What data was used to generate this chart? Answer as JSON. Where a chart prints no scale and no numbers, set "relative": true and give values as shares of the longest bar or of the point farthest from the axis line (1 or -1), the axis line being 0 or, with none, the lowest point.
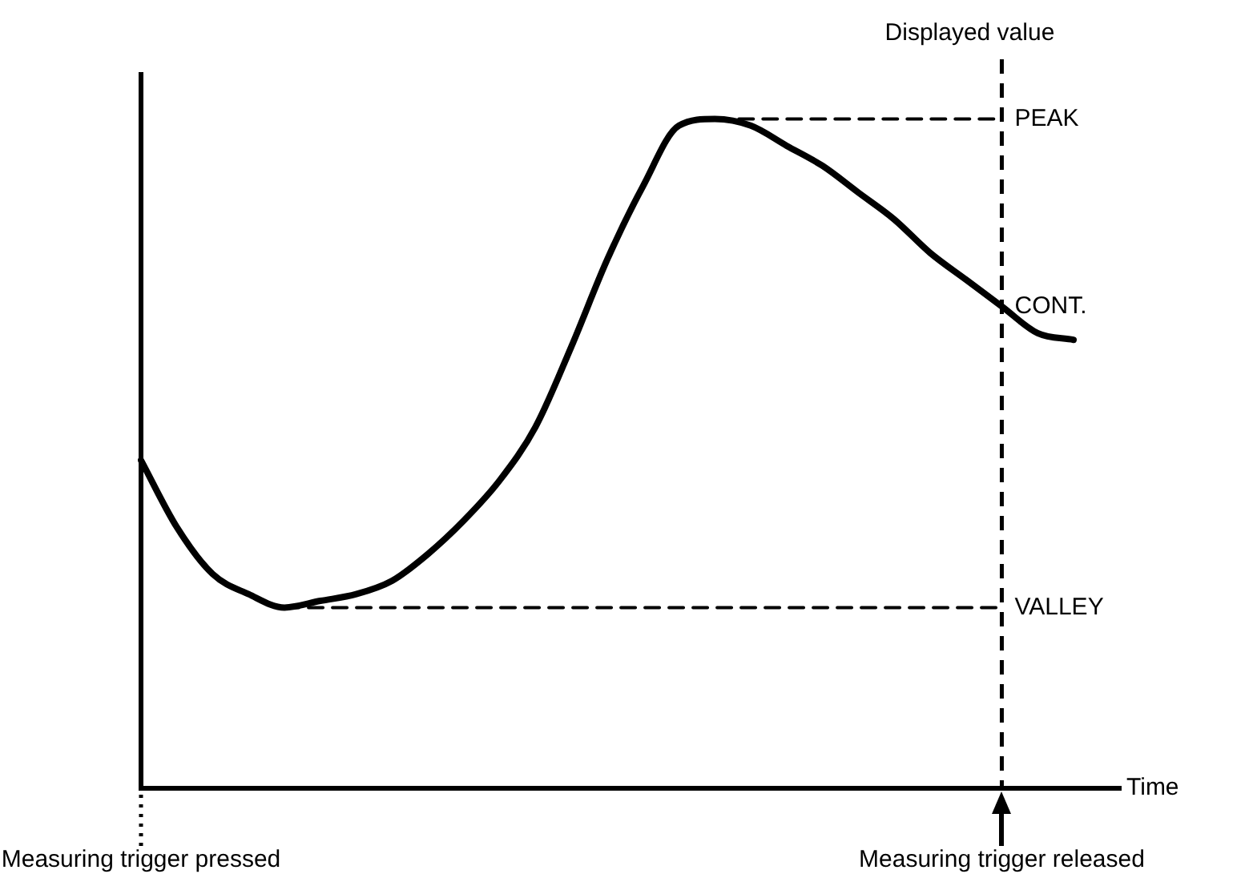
{
  "chart_data": {
    "type": "line",
    "relative": true,
    "xlabel": "Time",
    "legend": false,
    "marker": "none",
    "categories": [
      "Measuring trigger pressed",
      null,
      null,
      null,
      null,
      null,
      null,
      null,
      null,
      null,
      null,
      null,
      null,
      null,
      null,
      null,
      null,
      null,
      null,
      null,
      null,
      null,
      null,
      null,
      "Measuring trigger released",
      null,
      null
    ],
    "series": [
      {
        "color": "#000000",
        "values": [
          0.49,
          0.39,
          0.32,
          0.29,
          0.27,
          0.28,
          0.29,
          0.31,
          0.35,
          0.4,
          0.46,
          0.54,
          0.66,
          0.79,
          0.9,
          0.99,
          1,
          0.99,
          0.96,
          0.93,
          0.89,
          0.85,
          0.8,
          0.76,
          0.72,
          0.68,
          0.67
        ]
      },
      {
        "name": "PEAK",
        "color": "#000000",
        "line_style": "dashed",
        "values": [
          null,
          null,
          null,
          null,
          null,
          null,
          null,
          null,
          null,
          null,
          null,
          null,
          null,
          null,
          null,
          null,
          1,
          1,
          1,
          1,
          1,
          1,
          1,
          1,
          1,
          null,
          null
        ]
      },
      {
        "name": "VALLEY",
        "color": "#000000",
        "line_style": "dashed",
        "values": [
          null,
          null,
          null,
          null,
          0.27,
          0.27,
          0.27,
          0.27,
          0.27,
          0.27,
          0.27,
          0.27,
          0.27,
          0.27,
          0.27,
          0.27,
          0.27,
          0.27,
          0.27,
          0.27,
          0.27,
          0.27,
          0.27,
          0.27,
          0.27,
          null,
          null
        ]
      }
    ],
    "ref_lines": [
      {
        "axis": "x",
        "value": "Measuring trigger released",
        "label": "Displayed value",
        "line_style": "dashed",
        "color": "#000000"
      }
    ],
    "annotations": [
      {
        "text": "CONT.",
        "x": "Measuring trigger released"
      }
    ]
  }
}
